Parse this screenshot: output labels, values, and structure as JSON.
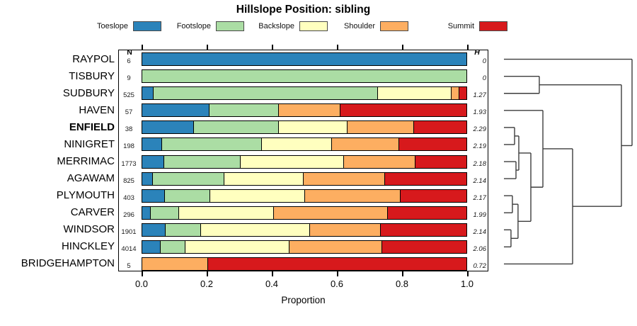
{
  "title": "Hillslope Position: sibling",
  "columns": {
    "n_header": "N",
    "h_header": "H"
  },
  "legend": [
    {
      "label": "Toeslope",
      "color": "#2B83BA"
    },
    {
      "label": "Footslope",
      "color": "#ABDDA4"
    },
    {
      "label": "Backslope",
      "color": "#FFFFBF"
    },
    {
      "label": "Shoulder",
      "color": "#FDAE61"
    },
    {
      "label": "Summit",
      "color": "#D7191C"
    }
  ],
  "chart_data": {
    "type": "bar",
    "subtype": "stacked-horizontal-proportion",
    "title": "Hillslope Position: sibling",
    "xlabel": "Proportion",
    "xlim": [
      0,
      1
    ],
    "x_ticks": [
      "0.0",
      "0.2",
      "0.4",
      "0.6",
      "0.8",
      "1.0"
    ],
    "categories": [
      "Toeslope",
      "Footslope",
      "Backslope",
      "Shoulder",
      "Summit"
    ],
    "series_colors": [
      "#2B83BA",
      "#ABDDA4",
      "#FFFFBF",
      "#FDAE61",
      "#D7191C"
    ],
    "rows": [
      {
        "name": "RAYPOL",
        "n": "6",
        "h": "0",
        "bold": false,
        "values": [
          1,
          0,
          0,
          0,
          0
        ]
      },
      {
        "name": "TISBURY",
        "n": "9",
        "h": "0",
        "bold": false,
        "values": [
          0,
          1,
          0,
          0,
          0
        ]
      },
      {
        "name": "SUDBURY",
        "n": "525",
        "h": "1.27",
        "bold": false,
        "values": [
          0.033,
          0.692,
          0.228,
          0.022,
          0.025
        ]
      },
      {
        "name": "HAVEN",
        "n": "57",
        "h": "1.93",
        "bold": false,
        "values": [
          0.205,
          0.215,
          0,
          0.19,
          0.39
        ]
      },
      {
        "name": "ENFIELD",
        "n": "38",
        "h": "2.29",
        "bold": true,
        "values": [
          0.157,
          0.262,
          0.212,
          0.206,
          0.163
        ]
      },
      {
        "name": "NINIGRET",
        "n": "198",
        "h": "2.19",
        "bold": false,
        "values": [
          0.06,
          0.307,
          0.217,
          0.207,
          0.209
        ]
      },
      {
        "name": "MERRIMAC",
        "n": "1773",
        "h": "2.18",
        "bold": false,
        "values": [
          0.066,
          0.236,
          0.319,
          0.219,
          0.16
        ]
      },
      {
        "name": "AGAWAM",
        "n": "825",
        "h": "2.14",
        "bold": false,
        "values": [
          0.03,
          0.221,
          0.244,
          0.252,
          0.253
        ]
      },
      {
        "name": "PLYMOUTH",
        "n": "403",
        "h": "2.17",
        "bold": false,
        "values": [
          0.067,
          0.14,
          0.292,
          0.295,
          0.206
        ]
      },
      {
        "name": "CARVER",
        "n": "296",
        "h": "1.99",
        "bold": false,
        "values": [
          0.025,
          0.087,
          0.291,
          0.353,
          0.244
        ]
      },
      {
        "name": "WINDSOR",
        "n": "1901",
        "h": "2.14",
        "bold": false,
        "values": [
          0.07,
          0.11,
          0.336,
          0.217,
          0.267
        ]
      },
      {
        "name": "HINCKLEY",
        "n": "4014",
        "h": "2.06",
        "bold": false,
        "values": [
          0.054,
          0.076,
          0.321,
          0.286,
          0.263
        ]
      },
      {
        "name": "BRIDGEHAMPTON",
        "n": "5",
        "h": "0.72",
        "bold": false,
        "values": [
          0,
          0,
          0,
          0.2,
          0.8
        ]
      }
    ],
    "dendrogram": {
      "leaf_order": [
        "RAYPOL",
        "TISBURY",
        "SUDBURY",
        "HAVEN",
        "ENFIELD",
        "NINIGRET",
        "MERRIMAC",
        "AGAWAM",
        "PLYMOUTH",
        "CARVER",
        "WINDSOR",
        "HINCKLEY",
        "BRIDGEHAMPTON"
      ],
      "merges": [
        {
          "id": "m1",
          "a": "ENFIELD",
          "b": "NINIGRET",
          "h": 0.083
        },
        {
          "id": "m2",
          "a": "MERRIMAC",
          "b": "AGAWAM",
          "h": 0.094
        },
        {
          "id": "m3",
          "a": "m1",
          "b": "m2",
          "h": 0.116
        },
        {
          "id": "m4",
          "a": "PLYMOUTH",
          "b": "CARVER",
          "h": 0.066
        },
        {
          "id": "m5",
          "a": "WINDSOR",
          "b": "HINCKLEY",
          "h": 0.055
        },
        {
          "id": "m6",
          "a": "m4",
          "b": "m5",
          "h": 0.11
        },
        {
          "id": "m7",
          "a": "m3",
          "b": "m6",
          "h": 0.21
        },
        {
          "id": "m8",
          "a": "HAVEN",
          "b": "m7",
          "h": 0.304
        },
        {
          "id": "m9",
          "a": "m8",
          "b": "BRIDGEHAMPTON",
          "h": 0.536
        },
        {
          "id": "m10",
          "a": "TISBURY",
          "b": "SUDBURY",
          "h": 0.276
        },
        {
          "id": "m11",
          "a": "m10",
          "b": "m9",
          "h": 0.917
        },
        {
          "id": "m12",
          "a": "RAYPOL",
          "b": "m11",
          "h": 1.0
        }
      ]
    }
  }
}
